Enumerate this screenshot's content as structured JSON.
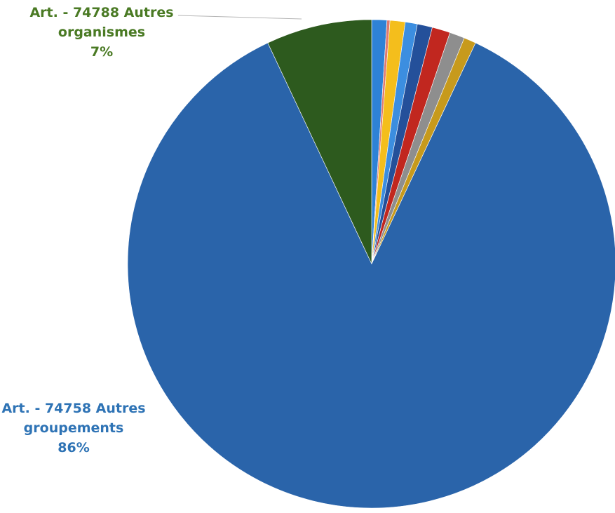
{
  "chart_data": {
    "type": "pie",
    "slices": [
      {
        "label": "Art. - 74758 Autres groupements",
        "value": 86,
        "color": "#2a64aa",
        "pct_label": "86%"
      },
      {
        "label": "Art. - 74788 Autres organismes",
        "value": 7,
        "color": "#2d5a1e",
        "pct_label": "7%"
      },
      {
        "label": "",
        "value": 1,
        "color": "#2e82d6",
        "pct_label": ""
      },
      {
        "label": "",
        "value": 0.2,
        "color": "#e07a70",
        "pct_label": ""
      },
      {
        "label": "",
        "value": 1,
        "color": "#f4be1c",
        "pct_label": ""
      },
      {
        "label": "",
        "value": 0.8,
        "color": "#3c8ee0",
        "pct_label": ""
      },
      {
        "label": "",
        "value": 1,
        "color": "#24509a",
        "pct_label": ""
      },
      {
        "label": "",
        "value": 1.2,
        "color": "#c1271f",
        "pct_label": ""
      },
      {
        "label": "",
        "value": 1,
        "color": "#8e8e8e",
        "pct_label": ""
      },
      {
        "label": "",
        "value": 0.8,
        "color": "#c79a1c",
        "pct_label": ""
      }
    ],
    "labels": {
      "green": {
        "line1": "Art. - 74788 Autres",
        "line2": "organismes",
        "line3": "7%"
      },
      "blue": {
        "line1": "Art. - 74758 Autres",
        "line2": "groupements",
        "line3": "86%"
      }
    }
  }
}
